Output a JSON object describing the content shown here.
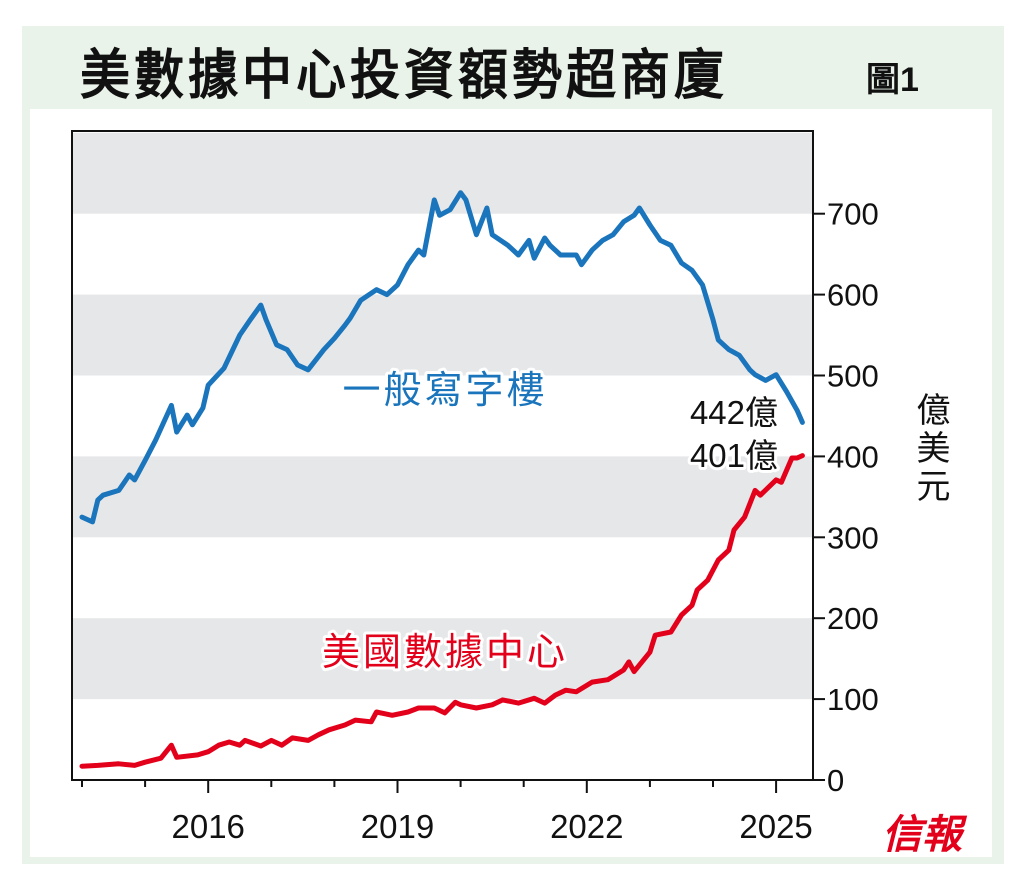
{
  "header": {
    "title": "美數據中心投資額勢超商廈",
    "figure_label": "圖1"
  },
  "logo": {
    "text": "信報",
    "color": "#e3001b"
  },
  "chart_data": {
    "type": "line",
    "title": "美數據中心投資額勢超商廈",
    "ylabel": "億美元",
    "ylim": [
      0,
      800
    ],
    "yticks": [
      0,
      100,
      200,
      300,
      400,
      500,
      600,
      700
    ],
    "ytick_labels": [
      "0",
      "100",
      "200",
      "300",
      "400",
      "500",
      "600",
      "700"
    ],
    "xlim": [
      "2014-01",
      "2025-08"
    ],
    "xticks": [
      "2016",
      "2019",
      "2022",
      "2025"
    ],
    "y_axis_side": "right",
    "grid": "alternating horizontal bands",
    "band_color": "#e6e7e8",
    "annotations": [
      {
        "text": "442億",
        "series": "一般寫字樓"
      },
      {
        "text": "401億",
        "series": "美國數據中心"
      }
    ],
    "series": [
      {
        "name": "一般寫字樓",
        "color": "#1a75bc",
        "x": [
          "2014-01",
          "2014-03",
          "2014-04",
          "2014-05",
          "2014-08",
          "2014-10",
          "2014-11",
          "2015-01",
          "2015-03",
          "2015-06",
          "2015-07",
          "2015-09",
          "2015-10",
          "2015-12",
          "2016-01",
          "2016-04",
          "2016-07",
          "2016-09",
          "2016-11",
          "2016-12",
          "2017-02",
          "2017-04",
          "2017-06",
          "2017-08",
          "2017-11",
          "2018-01",
          "2018-03",
          "2018-04",
          "2018-06",
          "2018-09",
          "2018-11",
          "2019-01",
          "2019-03",
          "2019-05",
          "2019-06",
          "2019-08",
          "2019-09",
          "2019-11",
          "2020-01",
          "2020-02",
          "2020-04",
          "2020-06",
          "2020-07",
          "2020-10",
          "2020-12",
          "2021-02",
          "2021-03",
          "2021-05",
          "2021-06",
          "2021-08",
          "2021-11",
          "2021-12",
          "2022-02",
          "2022-04",
          "2022-06",
          "2022-08",
          "2022-10",
          "2022-11",
          "2023-01",
          "2023-03",
          "2023-05",
          "2023-07",
          "2023-09",
          "2023-11",
          "2024-01",
          "2024-02",
          "2024-04",
          "2024-06",
          "2024-08",
          "2024-09",
          "2024-11",
          "2025-01",
          "2025-03",
          "2025-05",
          "2025-06"
        ],
        "values": [
          325,
          319,
          346,
          352,
          358,
          377,
          371,
          395,
          420,
          463,
          430,
          451,
          439,
          460,
          488,
          509,
          550,
          569,
          587,
          569,
          538,
          532,
          513,
          507,
          532,
          546,
          562,
          571,
          593,
          606,
          600,
          612,
          637,
          655,
          649,
          717,
          698,
          705,
          726,
          717,
          674,
          707,
          674,
          661,
          649,
          667,
          645,
          670,
          661,
          649,
          649,
          637,
          655,
          667,
          674,
          690,
          698,
          707,
          686,
          667,
          661,
          639,
          630,
          612,
          569,
          544,
          532,
          525,
          507,
          501,
          494,
          501,
          480,
          457,
          442
        ]
      },
      {
        "name": "美國數據中心",
        "color": "#e3001b",
        "x": [
          "2014-01",
          "2014-04",
          "2014-08",
          "2014-11",
          "2015-01",
          "2015-04",
          "2015-06",
          "2015-07",
          "2015-11",
          "2016-01",
          "2016-03",
          "2016-05",
          "2016-07",
          "2016-08",
          "2016-11",
          "2017-01",
          "2017-03",
          "2017-05",
          "2017-08",
          "2017-10",
          "2017-12",
          "2018-03",
          "2018-05",
          "2018-08",
          "2018-09",
          "2018-12",
          "2019-03",
          "2019-05",
          "2019-08",
          "2019-10",
          "2019-12",
          "2020-01",
          "2020-04",
          "2020-07",
          "2020-09",
          "2020-12",
          "2021-03",
          "2021-05",
          "2021-07",
          "2021-09",
          "2021-11",
          "2022-02",
          "2022-05",
          "2022-08",
          "2022-09",
          "2022-10",
          "2023-01",
          "2023-02",
          "2023-05",
          "2023-07",
          "2023-09",
          "2023-10",
          "2023-12",
          "2024-02",
          "2024-04",
          "2024-05",
          "2024-07",
          "2024-09",
          "2024-10",
          "2025-01",
          "2025-02",
          "2025-04",
          "2025-05",
          "2025-06"
        ],
        "values": [
          17,
          18,
          20,
          18,
          22,
          27,
          43,
          28,
          31,
          35,
          43,
          47,
          43,
          49,
          42,
          49,
          43,
          52,
          49,
          56,
          62,
          68,
          74,
          72,
          84,
          80,
          84,
          89,
          89,
          83,
          96,
          93,
          89,
          93,
          99,
          95,
          101,
          95,
          105,
          111,
          109,
          121,
          124,
          136,
          146,
          134,
          158,
          179,
          183,
          204,
          216,
          235,
          247,
          272,
          284,
          309,
          325,
          358,
          352,
          371,
          368,
          398,
          398,
          401
        ]
      }
    ]
  }
}
